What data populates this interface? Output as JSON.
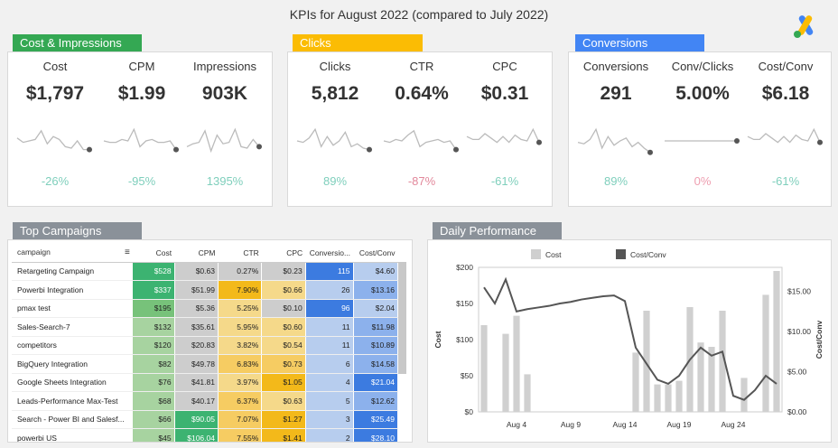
{
  "page_title": "KPIs for August 2022 (compared to July 2022)",
  "sections": {
    "cost": {
      "title": "Cost & Impressions",
      "color": "#34a853"
    },
    "clicks": {
      "title": "Clicks",
      "color": "#fbbc04"
    },
    "conv": {
      "title": "Conversions",
      "color": "#4285f4"
    },
    "top": {
      "title": "Top Campaigns",
      "color": "#8a9199"
    },
    "daily": {
      "title": "Daily Performance",
      "color": "#8a9199"
    }
  },
  "kpis": [
    {
      "label": "Cost",
      "value": "$1,797",
      "change": "-26%",
      "tone": "pos",
      "spark": [
        0.4,
        0.55,
        0.5,
        0.45,
        0.15,
        0.6,
        0.35,
        0.45,
        0.7,
        0.75,
        0.5,
        0.8,
        0.8
      ]
    },
    {
      "label": "CPM",
      "value": "$1.99",
      "change": "-95%",
      "tone": "pos",
      "spark": [
        0.5,
        0.55,
        0.55,
        0.45,
        0.5,
        0.1,
        0.7,
        0.5,
        0.45,
        0.55,
        0.55,
        0.5,
        0.8
      ]
    },
    {
      "label": "Impressions",
      "value": "903K",
      "change": "1395%",
      "tone": "pos",
      "spark": [
        0.7,
        0.6,
        0.55,
        0.15,
        0.85,
        0.3,
        0.6,
        0.55,
        0.1,
        0.7,
        0.75,
        0.45,
        0.7
      ]
    },
    {
      "label": "Clicks",
      "value": "5,812",
      "change": "89%",
      "tone": "pos",
      "spark": [
        0.5,
        0.55,
        0.4,
        0.1,
        0.7,
        0.35,
        0.65,
        0.5,
        0.2,
        0.7,
        0.6,
        0.75,
        0.8
      ]
    },
    {
      "label": "CTR",
      "value": "0.64%",
      "change": "-87%",
      "tone": "neg",
      "spark": [
        0.5,
        0.55,
        0.45,
        0.5,
        0.3,
        0.15,
        0.7,
        0.55,
        0.5,
        0.45,
        0.55,
        0.5,
        0.8
      ]
    },
    {
      "label": "CPC",
      "value": "$0.31",
      "change": "-61%",
      "tone": "pos",
      "spark": [
        0.35,
        0.45,
        0.45,
        0.25,
        0.4,
        0.55,
        0.35,
        0.55,
        0.3,
        0.45,
        0.5,
        0.1,
        0.55
      ]
    },
    {
      "label": "Conversions",
      "value": "291",
      "change": "89%",
      "tone": "pos",
      "spark": [
        0.55,
        0.6,
        0.45,
        0.1,
        0.75,
        0.35,
        0.65,
        0.5,
        0.4,
        0.7,
        0.55,
        0.75,
        0.9
      ]
    },
    {
      "label": "Conv/Clicks",
      "value": "5.00%",
      "change": "0%",
      "tone": "neu",
      "spark": [
        0.5,
        0.5,
        0.5,
        0.5,
        0.5,
        0.5,
        0.5,
        0.5,
        0.5,
        0.5,
        0.5,
        0.5,
        0.5
      ]
    },
    {
      "label": "Cost/Conv",
      "value": "$6.18",
      "change": "-61%",
      "tone": "pos",
      "spark": [
        0.35,
        0.45,
        0.45,
        0.25,
        0.4,
        0.55,
        0.35,
        0.55,
        0.3,
        0.45,
        0.5,
        0.1,
        0.55
      ]
    }
  ],
  "table": {
    "headers": [
      "campaign",
      "Cost",
      "CPM",
      "CTR",
      "CPC",
      "Conversio...",
      "Cost/Conv"
    ],
    "rows": [
      {
        "name": "Retargeting Campaign",
        "cells": [
          "$528",
          "$0.63",
          "0.27%",
          "$0.23",
          "115",
          "$4.60"
        ],
        "cls": [
          "g1",
          "gr",
          "gr",
          "gr",
          "b1",
          "b3"
        ]
      },
      {
        "name": "Powerbi Integration",
        "cells": [
          "$337",
          "$51.99",
          "7.90%",
          "$0.66",
          "26",
          "$13.16"
        ],
        "cls": [
          "g1",
          "gr",
          "y1",
          "y3",
          "b3",
          "b2"
        ]
      },
      {
        "name": "pmax test",
        "cells": [
          "$195",
          "$5.36",
          "5.25%",
          "$0.10",
          "96",
          "$2.04"
        ],
        "cls": [
          "g2",
          "gr",
          "y3",
          "gr",
          "b1",
          "b3"
        ]
      },
      {
        "name": "Sales-Search-7",
        "cells": [
          "$132",
          "$35.61",
          "5.95%",
          "$0.60",
          "11",
          "$11.98"
        ],
        "cls": [
          "g3",
          "gr",
          "y3",
          "y3",
          "b3",
          "b2"
        ]
      },
      {
        "name": "competitors",
        "cells": [
          "$120",
          "$20.83",
          "3.82%",
          "$0.54",
          "11",
          "$10.89"
        ],
        "cls": [
          "g3",
          "gr",
          "y3",
          "y3",
          "b3",
          "b2"
        ]
      },
      {
        "name": "BigQuery Integration",
        "cells": [
          "$82",
          "$49.78",
          "6.83%",
          "$0.73",
          "6",
          "$14.58"
        ],
        "cls": [
          "g3",
          "gr",
          "y2",
          "y2",
          "b3",
          "b2"
        ]
      },
      {
        "name": "Google Sheets Integration",
        "cells": [
          "$76",
          "$41.81",
          "3.97%",
          "$1.05",
          "4",
          "$21.04"
        ],
        "cls": [
          "g3",
          "gr",
          "y3",
          "y1",
          "b3",
          "b1"
        ]
      },
      {
        "name": "Leads-Performance Max-Test",
        "cells": [
          "$68",
          "$40.17",
          "6.37%",
          "$0.63",
          "5",
          "$12.62"
        ],
        "cls": [
          "g3",
          "gr",
          "y2",
          "y3",
          "b3",
          "b2"
        ]
      },
      {
        "name": "Search - Power BI and Salesf...",
        "cells": [
          "$66",
          "$90.05",
          "7.07%",
          "$1.27",
          "3",
          "$25.49"
        ],
        "cls": [
          "g3",
          "g1",
          "y2",
          "y1",
          "b3",
          "b1"
        ]
      },
      {
        "name": "powerbi US",
        "cells": [
          "$45",
          "$106.04",
          "7.55%",
          "$1.41",
          "2",
          "$28.10"
        ],
        "cls": [
          "g3",
          "g1",
          "y2",
          "y1",
          "b3",
          "b1"
        ]
      }
    ]
  },
  "chart_data": {
    "type": "bar",
    "legend": [
      "Cost",
      "Cost/Conv"
    ],
    "legend_position": "top",
    "x_ticks": [
      "Aug 4",
      "Aug 9",
      "Aug 14",
      "Aug 19",
      "Aug 24"
    ],
    "ylabel": "Cost",
    "y2label": "Cost/Conv",
    "y_ticks": [
      "$200",
      "$150",
      "$100",
      "$50",
      "$0"
    ],
    "y2_ticks": [
      "$15.00",
      "$10.00",
      "$5.00",
      "$0.00"
    ],
    "ylim": [
      0,
      200
    ],
    "y2lim": [
      0,
      18
    ],
    "series": [
      {
        "name": "Cost",
        "kind": "bar",
        "values": [
          120,
          0,
          108,
          133,
          52,
          0,
          0,
          0,
          0,
          0,
          0,
          0,
          0,
          0,
          82,
          140,
          38,
          38,
          43,
          145,
          96,
          90,
          140,
          0,
          47,
          0,
          162,
          195
        ]
      },
      {
        "name": "Cost/Conv",
        "kind": "line",
        "values": [
          15.5,
          13.5,
          16.5,
          12.5,
          12.8,
          13.0,
          13.2,
          13.5,
          13.7,
          14.0,
          14.2,
          14.4,
          14.5,
          13.8,
          8.0,
          6.0,
          4.0,
          3.5,
          4.5,
          6.5,
          8.0,
          7.0,
          7.5,
          2.0,
          1.5,
          2.7,
          4.5,
          3.5
        ]
      }
    ]
  }
}
